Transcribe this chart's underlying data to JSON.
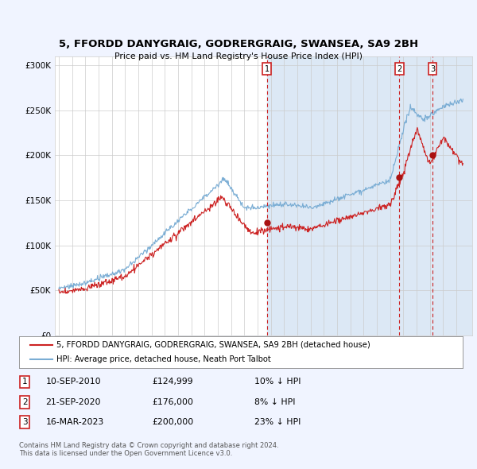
{
  "title": "5, FFORDD DANYGRAIG, GODRERGRAIG, SWANSEA, SA9 2BH",
  "subtitle": "Price paid vs. HM Land Registry's House Price Index (HPI)",
  "legend_line1": "5, FFORDD DANYGRAIG, GODRERGRAIG, SWANSEA, SA9 2BH (detached house)",
  "legend_line2": "HPI: Average price, detached house, Neath Port Talbot",
  "transactions": [
    {
      "num": 1,
      "date": "10-SEP-2010",
      "price": "£124,999",
      "pct": "10%",
      "dir": "↓",
      "year": 2010.7
    },
    {
      "num": 2,
      "date": "21-SEP-2020",
      "price": "£176,000",
      "pct": "8%",
      "dir": "↓",
      "year": 2020.7
    },
    {
      "num": 3,
      "date": "16-MAR-2023",
      "price": "£200,000",
      "pct": "23%",
      "dir": "↓",
      "year": 2023.2
    }
  ],
  "footer1": "Contains HM Land Registry data © Crown copyright and database right 2024.",
  "footer2": "This data is licensed under the Open Government Licence v3.0.",
  "ylim": [
    0,
    310000
  ],
  "xlim_start": 1994.7,
  "xlim_end": 2026.2,
  "bg_color": "#f0f4ff",
  "plot_bg": "#ffffff",
  "shade_bg": "#dce8f5",
  "grid_color": "#cccccc",
  "hpi_color": "#7aadd4",
  "price_color": "#cc2222",
  "marker_color": "#aa1111",
  "vline_color": "#cc2222",
  "box_border_color": "#cc2222",
  "shade_start": 2010.7
}
